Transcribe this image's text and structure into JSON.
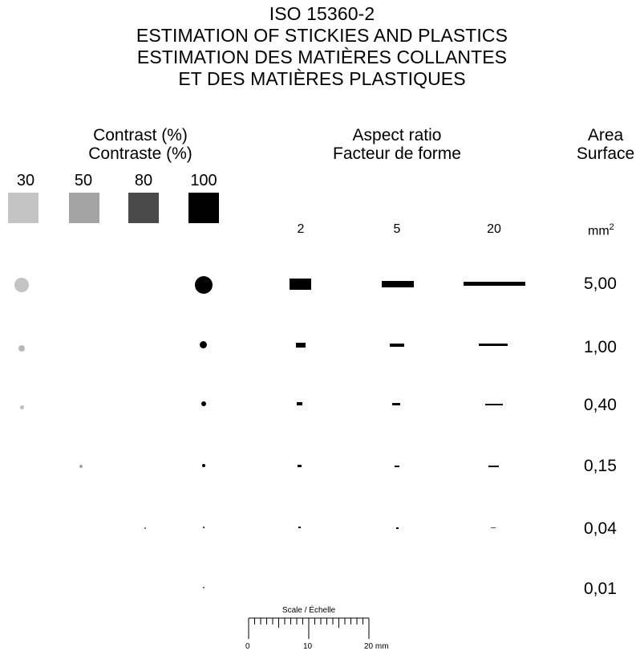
{
  "title": {
    "line1": "ISO 15360-2",
    "line2": "ESTIMATION OF STICKIES AND PLASTICS",
    "line3": "ESTIMATION DES MATIÈRES COLLANTES",
    "line4": "ET DES MATIÈRES PLASTIQUES"
  },
  "contrast_header": {
    "en": "Contrast (%)",
    "fr": "Contraste (%)"
  },
  "aspect_header": {
    "en": "Aspect ratio",
    "fr": "Facteur de forme"
  },
  "area_header": {
    "en": "Area",
    "fr": "Surface"
  },
  "contrast_levels": [
    "30",
    "50",
    "80",
    "100"
  ],
  "aspect_ratios": [
    "2",
    "5",
    "20"
  ],
  "area_unit": "mm",
  "area_unit_exp": "2",
  "areas": [
    "5,00",
    "1,00",
    "0,40",
    "0,15",
    "0,04",
    "0,01"
  ],
  "swatch_colors": [
    "#c4c4c4",
    "#a4a4a4",
    "#4a4a4a",
    "#000000"
  ],
  "scale": {
    "label": "Scale / Échelle",
    "ticks": [
      "0",
      "10",
      "20 mm"
    ]
  }
}
